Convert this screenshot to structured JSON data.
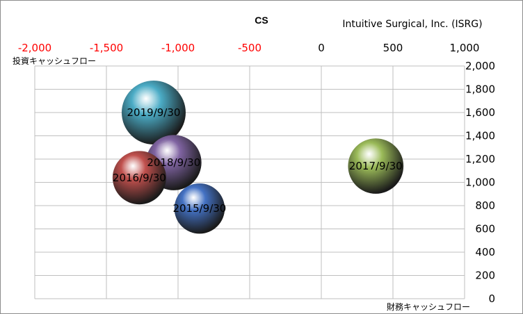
{
  "chart_data": {
    "type": "bubble",
    "title": "CS",
    "subtitle": "Intuitive Surgical, Inc. (ISRG)",
    "xlabel": "財務キャッシュフロー",
    "ylabel": "投資キャッシュフロー",
    "xlim": [
      -2000,
      1000
    ],
    "ylim": [
      0,
      2000
    ],
    "x_ticks": [
      "-2,000",
      "-1,500",
      "-1,000",
      "-500",
      "0",
      "500",
      "1,000"
    ],
    "y_ticks": [
      "0",
      "200",
      "400",
      "600",
      "800",
      "1,000",
      "1,200",
      "1,400",
      "1,600",
      "1,800",
      "2,000"
    ],
    "grid": true,
    "points": [
      {
        "label": "2015/9/30",
        "x": -850,
        "y": 775,
        "size": 0.62,
        "color": "#4472c4"
      },
      {
        "label": "2016/9/30",
        "x": -1270,
        "y": 1040,
        "size": 0.7,
        "color": "#c0504d"
      },
      {
        "label": "2017/9/30",
        "x": 380,
        "y": 1140,
        "size": 0.75,
        "color": "#9bbb59"
      },
      {
        "label": "2018/9/30",
        "x": -1030,
        "y": 1170,
        "size": 0.75,
        "color": "#8064a2"
      },
      {
        "label": "2019/9/30",
        "x": -1170,
        "y": 1600,
        "size": 1.0,
        "color": "#4bacc6"
      }
    ]
  }
}
